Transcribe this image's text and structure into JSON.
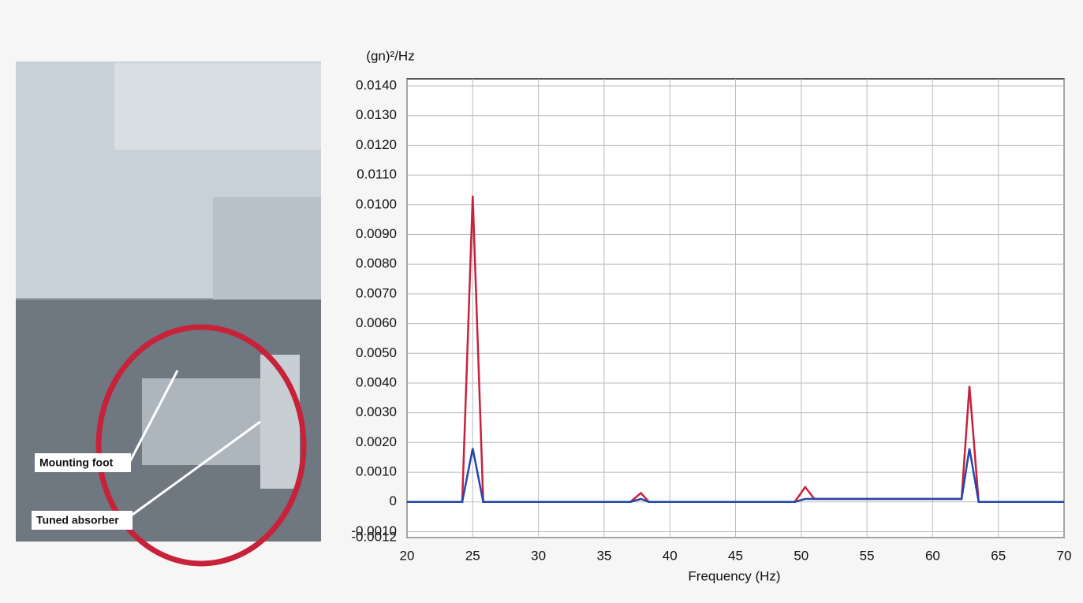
{
  "chart_data": {
    "type": "line",
    "y_label": "(gn)²/Hz",
    "x_label": "Frequency (Hz)",
    "x": [
      20,
      24.2,
      25,
      25.8,
      37,
      37.8,
      38.4,
      49.5,
      50.3,
      51,
      62.2,
      62.8,
      63.5,
      70
    ],
    "series": [
      {
        "color": "#c8213a",
        "values": [
          0,
          0,
          0.0103,
          0,
          0,
          0.0003,
          0,
          0,
          0.0005,
          0.0001,
          0.0001,
          0.0039,
          0,
          0
        ]
      },
      {
        "color": "#2347a8",
        "values": [
          0,
          0,
          0.0018,
          0,
          0,
          0.0001,
          0,
          0,
          0.0001,
          0.0001,
          0.0001,
          0.0018,
          0,
          0
        ]
      }
    ],
    "xlim": [
      20,
      70
    ],
    "xticks": [
      20,
      25,
      30,
      35,
      40,
      45,
      50,
      55,
      60,
      65,
      70
    ],
    "ylim": [
      -0.0012,
      0.014
    ],
    "yticks": [
      {
        "value": 0.014,
        "label": "0.0140"
      },
      {
        "value": 0.013,
        "label": "0.0130"
      },
      {
        "value": 0.012,
        "label": "0.0120"
      },
      {
        "value": 0.011,
        "label": "0.0110"
      },
      {
        "value": 0.01,
        "label": "0.0100"
      },
      {
        "value": 0.009,
        "label": "0.0090"
      },
      {
        "value": 0.008,
        "label": "0.0080"
      },
      {
        "value": 0.007,
        "label": "0.0070"
      },
      {
        "value": 0.006,
        "label": "0.0060"
      },
      {
        "value": 0.005,
        "label": "0.0050"
      },
      {
        "value": 0.004,
        "label": "0.0040"
      },
      {
        "value": 0.003,
        "label": "0.0030"
      },
      {
        "value": 0.002,
        "label": "0.0020"
      },
      {
        "value": 0.001,
        "label": "0.0010"
      },
      0,
      {
        "value": -0.001,
        "label": "-0.0010"
      },
      {
        "value": -0.0012,
        "label": "-0.0012"
      }
    ],
    "grid": true
  },
  "photo": {
    "labels": [
      "Mounting foot",
      "Tuned absorber"
    ]
  }
}
